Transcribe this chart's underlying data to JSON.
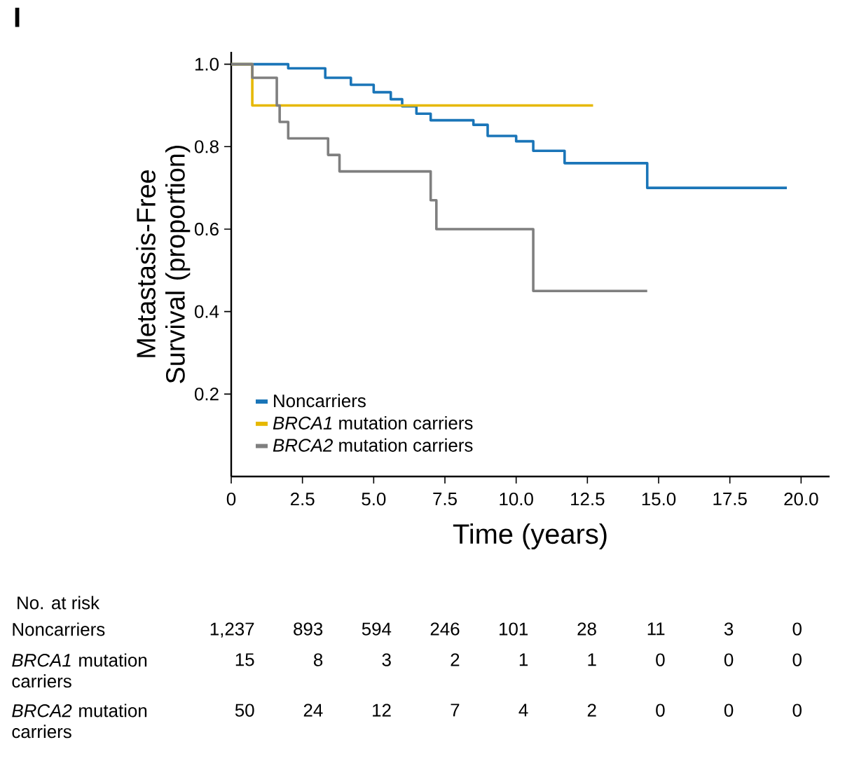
{
  "chart_data": {
    "type": "step",
    "title": "I",
    "xlabel": "Time (years)",
    "ylabel": "Metastasis-Free Survival (proportion)",
    "xlim": [
      0,
      21
    ],
    "ylim": [
      0,
      1.03
    ],
    "xticks": [
      0,
      {
        "value": 2.5,
        "label": "2.5"
      },
      {
        "value": 5,
        "label": "5.0"
      },
      {
        "value": 7.5,
        "label": "7.5"
      },
      {
        "value": 10,
        "label": "10.0"
      },
      {
        "value": 12.5,
        "label": "12.5"
      },
      {
        "value": 15,
        "label": "15.0"
      },
      {
        "value": 17.5,
        "label": "17.5"
      },
      {
        "value": 20,
        "label": "20.0"
      }
    ],
    "yticks": [
      0.2,
      0.4,
      0.6,
      0.8,
      {
        "value": 1,
        "label": "1.0"
      }
    ],
    "legend": "bottom left",
    "grid": false,
    "marker": "none",
    "line_style": "solid",
    "series": [
      {
        "name": "Noncarriers",
        "color": "#1a75b8",
        "x": [
          0,
          1.2,
          2.0,
          3.3,
          4.2,
          5.0,
          5.6,
          6.0,
          6.5,
          7.0,
          8.5,
          9.0,
          10.0,
          10.6,
          11.7,
          14.6,
          19.5
        ],
        "values": [
          1.0,
          1.0,
          0.99,
          0.967,
          0.95,
          0.932,
          0.915,
          0.898,
          0.88,
          0.864,
          0.853,
          0.826,
          0.813,
          0.79,
          0.76,
          0.7,
          0.7
        ]
      },
      {
        "name": "*BRCA1* mutation carriers",
        "color": "#e6b800",
        "x": [
          0,
          0.74,
          12.7
        ],
        "values": [
          1.0,
          0.9,
          0.9
        ]
      },
      {
        "name": "*BRCA2* mutation carriers",
        "color": "#7f7f7f",
        "x": [
          0,
          0.74,
          1.6,
          1.7,
          2.0,
          3.4,
          3.8,
          7.0,
          7.2,
          10.6,
          14.6
        ],
        "values": [
          1.0,
          0.967,
          0.9,
          0.86,
          0.82,
          0.78,
          0.74,
          0.67,
          0.6,
          0.45,
          0.45
        ]
      }
    ],
    "annotations": [
      "No. at risk",
      "Noncarriers",
      "1,237",
      "893",
      "594",
      "246",
      "101",
      "28",
      "11",
      "3",
      "0",
      "*BRCA1* mutation carriers",
      "15",
      "8",
      "3",
      "2",
      "1",
      "1",
      "0",
      "0",
      "0",
      "*BRCA2* mutation carriers",
      "50",
      "24",
      "12",
      "7",
      "4",
      "2",
      "0",
      "0",
      "0"
    ]
  }
}
